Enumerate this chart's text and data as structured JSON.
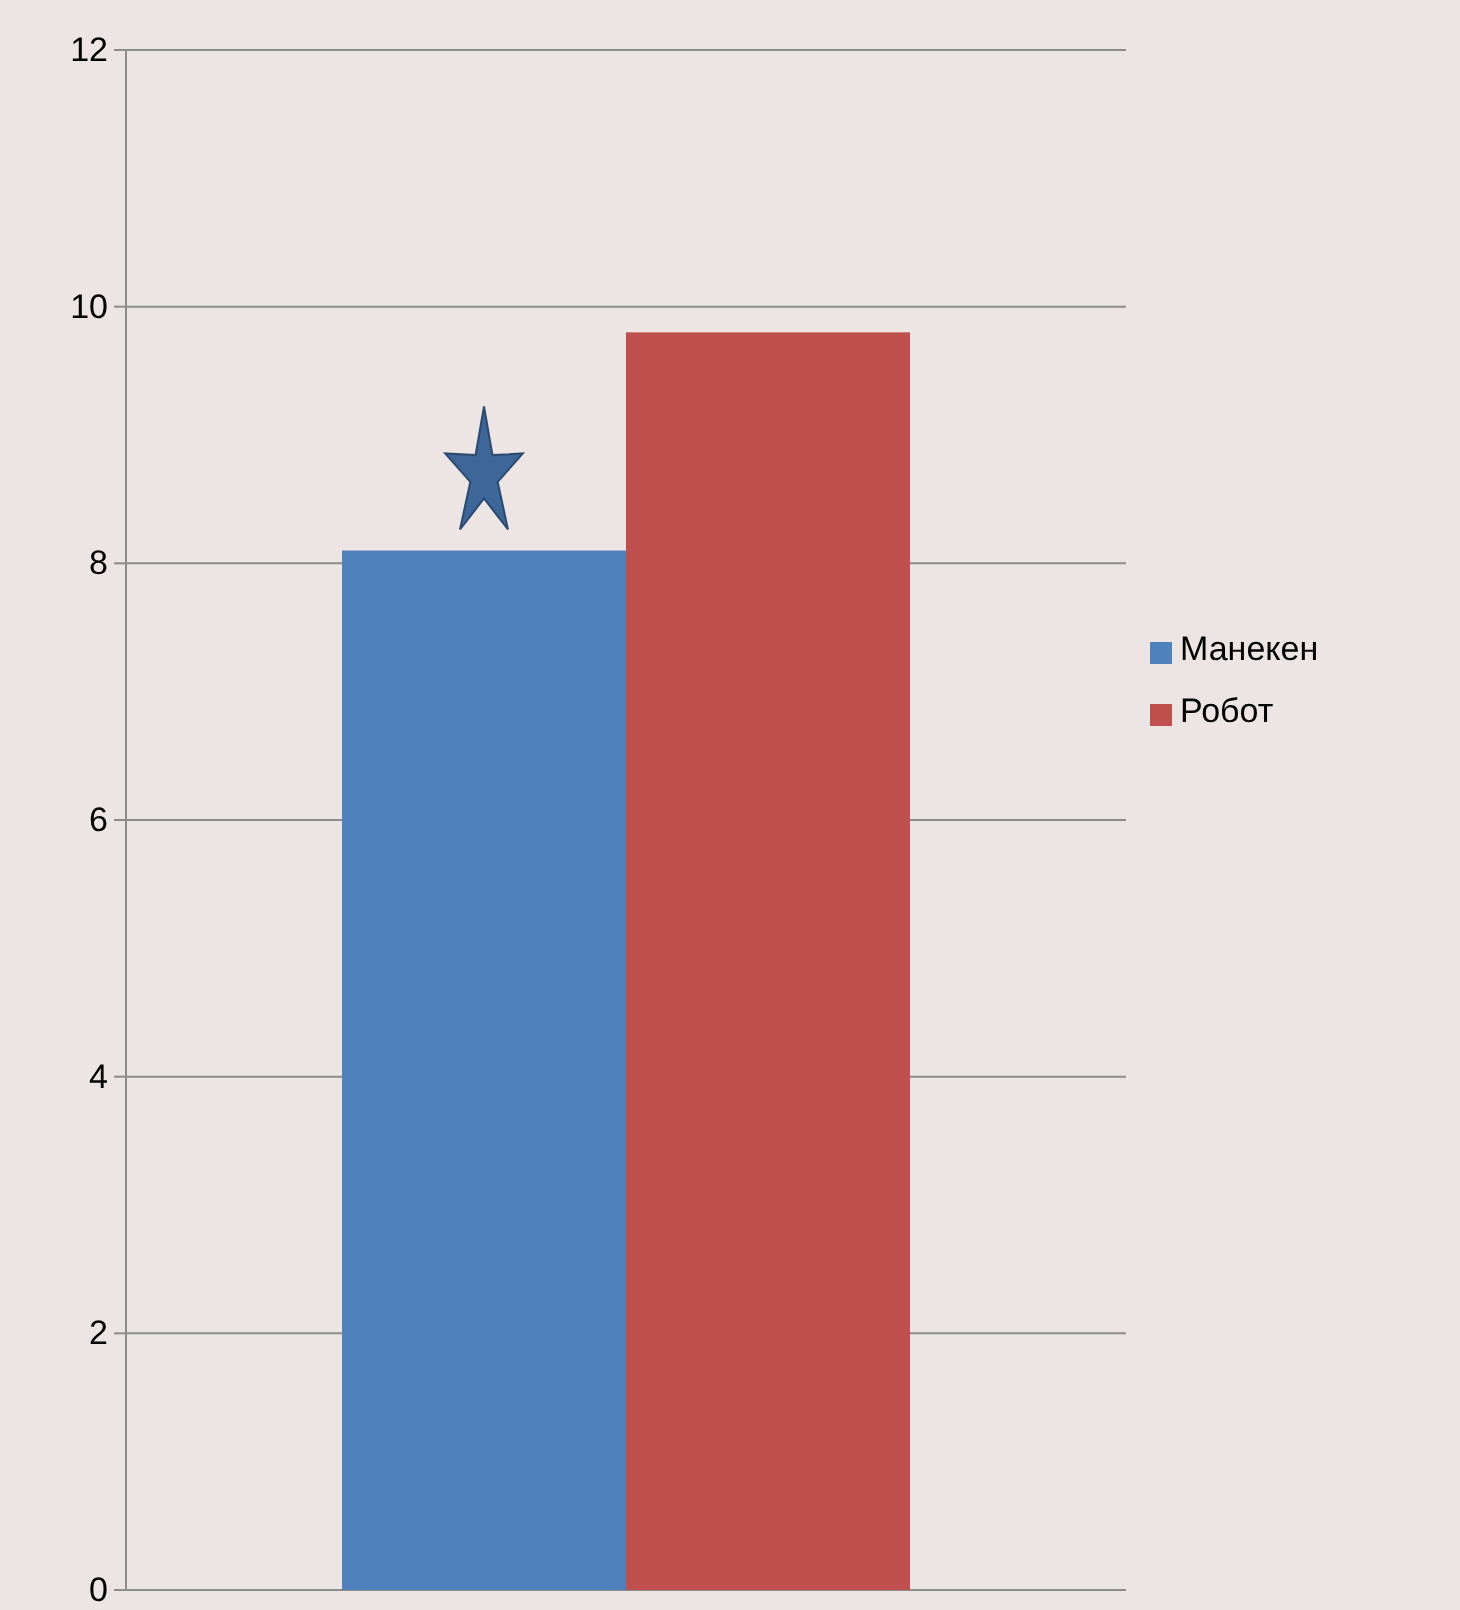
{
  "chart_data": {
    "type": "bar",
    "categories": [
      null
    ],
    "series": [
      {
        "name": "Манекен",
        "color": "#4f81bd",
        "values": [
          8.1
        ]
      },
      {
        "name": "Робот",
        "color": "#c0504d",
        "values": [
          9.8
        ]
      }
    ],
    "ylim": [
      0,
      12
    ],
    "yticks": [
      0,
      2,
      4,
      6,
      8,
      10,
      12
    ],
    "grid": "y",
    "legend": "right"
  }
}
